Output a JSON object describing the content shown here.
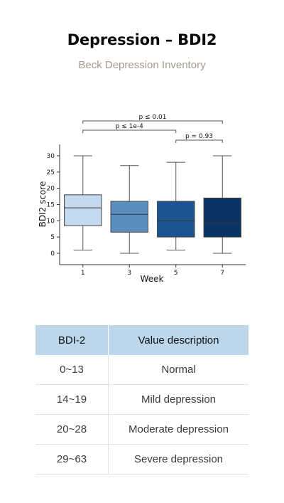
{
  "header": {
    "title": "Depression – BDI2",
    "subtitle": "Beck Depression Inventory"
  },
  "chart_data": {
    "type": "box",
    "xlabel": "Week",
    "ylabel": "BDI2 score",
    "categories": [
      "1",
      "3",
      "5",
      "7"
    ],
    "yticks": [
      0,
      5,
      10,
      15,
      20,
      25,
      30
    ],
    "ylim": [
      -3.5,
      33.5
    ],
    "boxes": [
      {
        "category": "1",
        "whisker_low": 1,
        "q1": 8.5,
        "median": 14,
        "q3": 18,
        "whisker_high": 30,
        "color": "#c3daf0"
      },
      {
        "category": "3",
        "whisker_low": 0,
        "q1": 6.5,
        "median": 12,
        "q3": 16,
        "whisker_high": 27,
        "color": "#5b8ebf"
      },
      {
        "category": "5",
        "whisker_low": 1,
        "q1": 5,
        "median": 10,
        "q3": 16,
        "whisker_high": 28,
        "color": "#1c5591"
      },
      {
        "category": "7",
        "whisker_low": 0,
        "q1": 5,
        "median": 9.5,
        "q3": 17,
        "whisker_high": 30,
        "color": "#0a3463"
      }
    ],
    "annotations": [
      {
        "from": "1",
        "to": "7",
        "label": "p ≤ 0.01",
        "level": 2
      },
      {
        "from": "1",
        "to": "5",
        "label": "p ≤ 1e-4",
        "level": 1
      },
      {
        "from": "5",
        "to": "7",
        "label": "p = 0.93",
        "level": 0
      }
    ]
  },
  "table": {
    "headers": [
      "BDI-2",
      "Value description"
    ],
    "rows": [
      [
        "0~13",
        "Normal"
      ],
      [
        "14~19",
        "Mild depression"
      ],
      [
        "20~28",
        "Moderate depression"
      ],
      [
        "29~63",
        "Severe depression"
      ]
    ],
    "header_color": "#bcd6ec"
  }
}
